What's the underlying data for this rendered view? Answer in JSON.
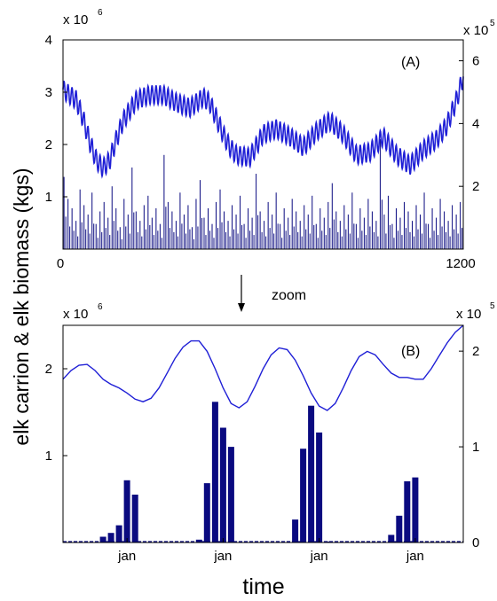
{
  "figure": {
    "ylabel": "elk carrion & elk biomass (kgs)",
    "xlabel": "time",
    "zoom_label": "zoom"
  },
  "chart_data": [
    {
      "type": "line",
      "panel_label": "(A)",
      "x_ticks": [
        "0",
        "1200"
      ],
      "xlim": [
        0,
        1200
      ],
      "left_axis": {
        "multiplier_base": "x 10",
        "multiplier_exp": "6",
        "ylim": [
          0,
          4
        ],
        "ticks": [
          "1",
          "2",
          "3",
          "4"
        ],
        "tick_values": [
          1,
          2,
          3,
          4
        ]
      },
      "right_axis": {
        "multiplier_base": "x 10",
        "multiplier_exp": "5",
        "ylim": [
          0,
          6.666
        ],
        "ticks": [
          "2",
          "4",
          "6"
        ],
        "tick_values": [
          2,
          4,
          6
        ]
      },
      "series": [
        {
          "axis": "left",
          "style": "line",
          "color": "#1f1fd6",
          "trend_x": [
            0,
            20,
            40,
            60,
            80,
            100,
            120,
            140,
            160,
            180,
            220,
            260,
            300,
            340,
            380,
            420,
            440,
            460,
            480,
            500,
            520,
            560,
            600,
            640,
            680,
            720,
            760,
            800,
            840,
            880,
            920,
            960,
            1000,
            1040,
            1080,
            1120,
            1150,
            1180,
            1200
          ],
          "trend_y": [
            3.05,
            2.95,
            2.85,
            2.5,
            2.05,
            1.7,
            1.55,
            1.7,
            2.1,
            2.45,
            2.85,
            2.95,
            2.95,
            2.8,
            2.7,
            2.9,
            2.8,
            2.5,
            2.2,
            1.95,
            1.8,
            1.75,
            2.2,
            2.3,
            2.15,
            1.95,
            2.25,
            2.45,
            2.2,
            1.8,
            1.85,
            2.15,
            1.8,
            1.6,
            1.9,
            2.1,
            2.35,
            2.85,
            3.3
          ],
          "oscillation_amplitude": 0.18,
          "oscillation_period": 12
        },
        {
          "axis": "right",
          "style": "spikes",
          "color": "#0a0a80",
          "period": 12,
          "spike_values": [
            2.3,
            1.6,
            1.3,
            0.9,
            1.9,
            1.4,
            1.1,
            1.8,
            0.8,
            1.2,
            1.5,
            1.0,
            2.0,
            1.3,
            0.7,
            1.6,
            1.1,
            2.6,
            1.2,
            0.9,
            1.4,
            1.7,
            1.0,
            1.3,
            0.8,
            3.0,
            1.5,
            1.2,
            0.9,
            1.8,
            1.1,
            1.4,
            0.7,
            1.6,
            2.2,
            1.0,
            1.3,
            0.8,
            1.5,
            1.9,
            1.2,
            0.9,
            1.4,
            1.1,
            1.7,
            0.8,
            1.3,
            1.0,
            2.4,
            1.2,
            0.9,
            1.5,
            1.1,
            1.8,
            0.8,
            1.3,
            1.0,
            1.6,
            1.2,
            0.9,
            1.4,
            1.1,
            1.7,
            0.8,
            1.3,
            1.0,
            1.5,
            2.1,
            1.2,
            0.9,
            1.4,
            1.1,
            1.8,
            0.8,
            1.3,
            1.0,
            1.6,
            1.2,
            0.9,
            3.5,
            1.1,
            1.7,
            0.8,
            1.3,
            1.0,
            1.5,
            1.2,
            0.9,
            1.4,
            1.1,
            1.8,
            0.8,
            1.3,
            1.0,
            1.6,
            1.2,
            0.9,
            1.4,
            1.1,
            1.5
          ]
        }
      ]
    },
    {
      "type": "bar",
      "panel_label": "(B)",
      "x_ticks": [
        "jan",
        "jan",
        "jan",
        "jan"
      ],
      "x_tick_positions": [
        8,
        20,
        32,
        44
      ],
      "xlim": [
        0,
        50
      ],
      "left_axis": {
        "multiplier_base": "x 10",
        "multiplier_exp": "6",
        "ylim": [
          0,
          2.5
        ],
        "ticks": [
          "1",
          "2"
        ],
        "tick_values": [
          1,
          2
        ]
      },
      "right_axis": {
        "multiplier_base": "x 10",
        "multiplier_exp": "5",
        "ylim": [
          0,
          2.27
        ],
        "ticks": [
          "0",
          "1",
          "2"
        ],
        "tick_values": [
          0,
          1,
          2
        ]
      },
      "line": {
        "axis": "left",
        "color": "#1f1fd6",
        "x": [
          0,
          1,
          2,
          3,
          4,
          5,
          6,
          7,
          8,
          9,
          10,
          11,
          12,
          13,
          14,
          15,
          16,
          17,
          18,
          19,
          20,
          21,
          22,
          23,
          24,
          25,
          26,
          27,
          28,
          29,
          30,
          31,
          32,
          33,
          34,
          35,
          36,
          37,
          38,
          39,
          40,
          41,
          42,
          43,
          44,
          45,
          46,
          47,
          48,
          49,
          50
        ],
        "y": [
          1.88,
          1.98,
          2.04,
          2.05,
          1.98,
          1.88,
          1.82,
          1.78,
          1.72,
          1.65,
          1.62,
          1.66,
          1.78,
          1.95,
          2.12,
          2.25,
          2.32,
          2.32,
          2.2,
          2.0,
          1.78,
          1.6,
          1.55,
          1.62,
          1.8,
          2.0,
          2.16,
          2.24,
          2.22,
          2.1,
          1.92,
          1.72,
          1.57,
          1.52,
          1.6,
          1.78,
          1.98,
          2.14,
          2.2,
          2.16,
          2.05,
          1.95,
          1.9,
          1.9,
          1.88,
          1.88,
          2.0,
          2.15,
          2.3,
          2.42,
          2.5
        ]
      },
      "bars": {
        "axis": "right",
        "color": "#0a0a80",
        "x": [
          5,
          6,
          7,
          8,
          9,
          17,
          18,
          19,
          20,
          21,
          29,
          30,
          31,
          32,
          33,
          41,
          42,
          43,
          44
        ],
        "values": [
          0.06,
          0.1,
          0.18,
          0.65,
          0.5,
          0.03,
          0.62,
          1.47,
          1.2,
          1.0,
          0.24,
          0.98,
          1.43,
          1.15,
          0.01,
          0.08,
          0.28,
          0.64,
          0.68
        ]
      }
    }
  ]
}
